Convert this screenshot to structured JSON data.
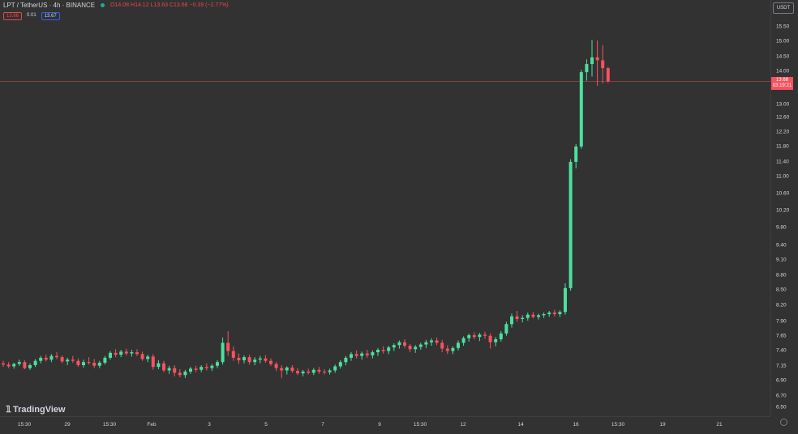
{
  "header": {
    "symbol": "LPT / TetherUS · 4h · BINANCE",
    "open_label": "O",
    "open": "14.08",
    "high_label": "H",
    "high": "14.12",
    "low_label": "L",
    "low": "13.63",
    "close_label": "C",
    "close": "13.68",
    "change": "−0.39 (−2.77%)"
  },
  "order_badges": {
    "sell": "13.66",
    "spread": "0.01",
    "buy": "13.67"
  },
  "currency": "USDT",
  "last_price": {
    "value": "13.68",
    "countdown": "03:19:21"
  },
  "logo_text": "TradingView",
  "colors": {
    "up": "#26a69a",
    "up_body": "#4ce0a0",
    "down": "#f7525f",
    "background": "#323232",
    "price_line": "#f7525f"
  },
  "chart_data": {
    "type": "candlestick",
    "symbol": "LPT/USDT",
    "interval": "4h",
    "exchange": "BINANCE",
    "y_ticks": [
      15.5,
      15.0,
      14.5,
      14.0,
      13.5,
      13.0,
      12.6,
      12.2,
      11.8,
      11.4,
      11.0,
      10.6,
      10.2,
      9.8,
      9.4,
      9.1,
      8.8,
      8.5,
      8.2,
      7.9,
      7.65,
      7.4,
      7.15,
      6.9,
      6.7,
      6.5
    ],
    "y_tick_labels": [
      "15.50",
      "15.00",
      "14.50",
      "14.00",
      "13.50",
      "13.00",
      "12.60",
      "12.20",
      "11.80",
      "11.40",
      "11.00",
      "10.60",
      "10.20",
      "9.80",
      "9.40",
      "9.10",
      "8.80",
      "8.50",
      "8.20",
      "7.90",
      "7.65",
      "7.40",
      "7.15",
      "6.90",
      "6.70",
      "6.50"
    ],
    "x_tick_labels": [
      "15:30",
      "29",
      "15:30",
      "Feb",
      "3",
      "5",
      "7",
      "9",
      "15:30",
      "12",
      "14",
      "16",
      "15:30",
      "19",
      "21"
    ],
    "last_price": 13.68,
    "candles": [
      [
        7.18,
        7.22,
        7.12,
        7.16
      ],
      [
        7.16,
        7.2,
        7.1,
        7.13
      ],
      [
        7.13,
        7.19,
        7.09,
        7.17
      ],
      [
        7.17,
        7.24,
        7.14,
        7.2
      ],
      [
        7.2,
        7.23,
        7.08,
        7.1
      ],
      [
        7.1,
        7.18,
        7.07,
        7.15
      ],
      [
        7.15,
        7.25,
        7.12,
        7.22
      ],
      [
        7.22,
        7.3,
        7.18,
        7.27
      ],
      [
        7.27,
        7.32,
        7.21,
        7.24
      ],
      [
        7.24,
        7.33,
        7.2,
        7.3
      ],
      [
        7.3,
        7.36,
        7.25,
        7.28
      ],
      [
        7.28,
        7.31,
        7.18,
        7.21
      ],
      [
        7.21,
        7.27,
        7.15,
        7.24
      ],
      [
        7.24,
        7.3,
        7.19,
        7.22
      ],
      [
        7.22,
        7.26,
        7.12,
        7.15
      ],
      [
        7.15,
        7.24,
        7.11,
        7.2
      ],
      [
        7.2,
        7.28,
        7.16,
        7.19
      ],
      [
        7.19,
        7.25,
        7.1,
        7.14
      ],
      [
        7.14,
        7.22,
        7.1,
        7.19
      ],
      [
        7.19,
        7.3,
        7.16,
        7.27
      ],
      [
        7.27,
        7.38,
        7.24,
        7.35
      ],
      [
        7.35,
        7.41,
        7.28,
        7.32
      ],
      [
        7.32,
        7.4,
        7.28,
        7.37
      ],
      [
        7.37,
        7.42,
        7.31,
        7.34
      ],
      [
        7.34,
        7.4,
        7.29,
        7.36
      ],
      [
        7.36,
        7.41,
        7.3,
        7.33
      ],
      [
        7.33,
        7.37,
        7.22,
        7.25
      ],
      [
        7.25,
        7.32,
        7.2,
        7.29
      ],
      [
        7.29,
        7.33,
        7.07,
        7.12
      ],
      [
        7.12,
        7.23,
        7.08,
        7.18
      ],
      [
        7.18,
        7.22,
        7.03,
        7.06
      ],
      [
        7.06,
        7.14,
        7.0,
        7.1
      ],
      [
        7.1,
        7.15,
        6.96,
        7.02
      ],
      [
        7.02,
        7.08,
        6.94,
        6.98
      ],
      [
        6.98,
        7.07,
        6.93,
        7.04
      ],
      [
        7.04,
        7.12,
        7.0,
        7.09
      ],
      [
        7.09,
        7.14,
        7.03,
        7.07
      ],
      [
        7.07,
        7.15,
        7.03,
        7.12
      ],
      [
        7.12,
        7.18,
        7.06,
        7.1
      ],
      [
        7.1,
        7.17,
        7.05,
        7.14
      ],
      [
        7.14,
        7.23,
        7.1,
        7.2
      ],
      [
        7.2,
        7.61,
        7.16,
        7.52
      ],
      [
        7.52,
        7.72,
        7.3,
        7.38
      ],
      [
        7.38,
        7.46,
        7.22,
        7.27
      ],
      [
        7.27,
        7.34,
        7.17,
        7.23
      ],
      [
        7.23,
        7.31,
        7.18,
        7.28
      ],
      [
        7.28,
        7.32,
        7.16,
        7.2
      ],
      [
        7.2,
        7.28,
        7.15,
        7.24
      ],
      [
        7.24,
        7.3,
        7.18,
        7.26
      ],
      [
        7.26,
        7.31,
        7.19,
        7.22
      ],
      [
        7.22,
        7.26,
        7.14,
        7.17
      ],
      [
        7.17,
        7.2,
        7.05,
        7.1
      ],
      [
        7.1,
        7.15,
        6.93,
        7.06
      ],
      [
        7.06,
        7.13,
        6.99,
        7.11
      ],
      [
        7.11,
        7.15,
        7.02,
        7.05
      ],
      [
        7.05,
        7.1,
        6.98,
        7.01
      ],
      [
        7.01,
        7.07,
        6.96,
        7.04
      ],
      [
        7.04,
        7.09,
        6.99,
        7.02
      ],
      [
        7.02,
        7.1,
        6.98,
        7.07
      ],
      [
        7.07,
        7.12,
        7.0,
        7.04
      ],
      [
        7.04,
        7.08,
        6.99,
        7.03
      ],
      [
        7.03,
        7.09,
        6.99,
        7.06
      ],
      [
        7.06,
        7.16,
        7.02,
        7.13
      ],
      [
        7.13,
        7.23,
        7.09,
        7.2
      ],
      [
        7.2,
        7.3,
        7.15,
        7.27
      ],
      [
        7.27,
        7.36,
        7.22,
        7.33
      ],
      [
        7.33,
        7.39,
        7.26,
        7.3
      ],
      [
        7.3,
        7.37,
        7.24,
        7.34
      ],
      [
        7.34,
        7.4,
        7.27,
        7.31
      ],
      [
        7.31,
        7.39,
        7.26,
        7.36
      ],
      [
        7.36,
        7.43,
        7.3,
        7.4
      ],
      [
        7.4,
        7.46,
        7.34,
        7.38
      ],
      [
        7.38,
        7.47,
        7.33,
        7.44
      ],
      [
        7.44,
        7.51,
        7.38,
        7.48
      ],
      [
        7.48,
        7.56,
        7.42,
        7.53
      ],
      [
        7.53,
        7.58,
        7.43,
        7.47
      ],
      [
        7.47,
        7.5,
        7.36,
        7.41
      ],
      [
        7.41,
        7.48,
        7.35,
        7.45
      ],
      [
        7.45,
        7.52,
        7.4,
        7.49
      ],
      [
        7.49,
        7.57,
        7.43,
        7.53
      ],
      [
        7.53,
        7.6,
        7.47,
        7.56
      ],
      [
        7.56,
        7.61,
        7.48,
        7.52
      ],
      [
        7.52,
        7.57,
        7.36,
        7.42
      ],
      [
        7.42,
        7.48,
        7.33,
        7.38
      ],
      [
        7.38,
        7.46,
        7.33,
        7.43
      ],
      [
        7.43,
        7.56,
        7.39,
        7.52
      ],
      [
        7.52,
        7.63,
        7.47,
        7.6
      ],
      [
        7.6,
        7.68,
        7.54,
        7.65
      ],
      [
        7.65,
        7.7,
        7.58,
        7.62
      ],
      [
        7.62,
        7.69,
        7.55,
        7.66
      ],
      [
        7.66,
        7.71,
        7.59,
        7.64
      ],
      [
        7.64,
        7.68,
        7.42,
        7.53
      ],
      [
        7.53,
        7.62,
        7.46,
        7.58
      ],
      [
        7.58,
        7.72,
        7.54,
        7.68
      ],
      [
        7.68,
        7.88,
        7.64,
        7.84
      ],
      [
        7.84,
        8.03,
        7.78,
        7.98
      ],
      [
        7.98,
        8.08,
        7.88,
        7.93
      ],
      [
        7.93,
        8.0,
        7.87,
        7.95
      ],
      [
        7.95,
        8.05,
        7.9,
        8.01
      ],
      [
        8.01,
        8.06,
        7.94,
        7.97
      ],
      [
        7.97,
        8.03,
        7.92,
        8.0
      ],
      [
        8.0,
        8.05,
        7.95,
        8.02
      ],
      [
        8.02,
        8.08,
        7.97,
        8.05
      ],
      [
        8.05,
        8.1,
        7.98,
        8.02
      ],
      [
        8.02,
        8.09,
        7.97,
        8.06
      ],
      [
        8.06,
        8.62,
        8.01,
        8.52
      ],
      [
        8.52,
        11.45,
        8.47,
        11.38
      ],
      [
        11.38,
        11.85,
        11.2,
        11.78
      ],
      [
        11.78,
        14.02,
        11.72,
        13.95
      ],
      [
        13.95,
        14.38,
        13.7,
        14.22
      ],
      [
        14.22,
        15.02,
        13.82,
        14.45
      ],
      [
        14.45,
        15.0,
        13.55,
        14.35
      ],
      [
        14.35,
        14.85,
        13.62,
        14.08
      ],
      [
        14.08,
        14.12,
        13.63,
        13.68
      ]
    ]
  }
}
